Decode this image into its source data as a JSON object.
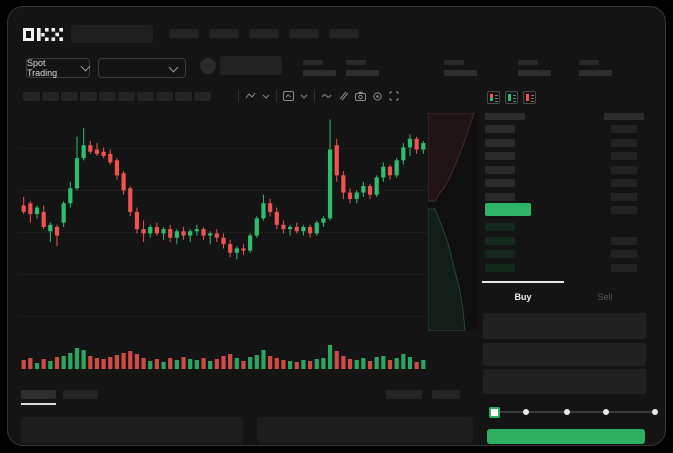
{
  "brand": {
    "name": "OKX"
  },
  "header": {
    "nav_item_count": 5
  },
  "ticker_bar": {
    "market_selector": {
      "label": "Spot Trading"
    },
    "pair_dropdown": {
      "selected": ""
    },
    "stat_placeholder_count": 5
  },
  "chart_toolbar": {
    "interval_placeholder_count": 10,
    "icons": [
      "chart-style-icon",
      "chevron-down-icon",
      "indicators-icon",
      "chevron-down-icon",
      "line-tool-icon",
      "compare-icon",
      "camera-icon",
      "settings-gear-icon",
      "fullscreen-icon"
    ]
  },
  "chart_data": {
    "type": "candlestick",
    "title": "",
    "xlabel": "",
    "ylabel": "",
    "price_scale": {
      "min": 0,
      "max": 100
    },
    "gridlines": {
      "horizontal_count": 5,
      "visible": true
    },
    "candles": [
      [
        57,
        61,
        53,
        54
      ],
      [
        58,
        59,
        49,
        53
      ],
      [
        53,
        57,
        51,
        56
      ],
      [
        54,
        57,
        46,
        47
      ],
      [
        45,
        49,
        40,
        48
      ],
      [
        47,
        48,
        38,
        43
      ],
      [
        49,
        59,
        47,
        58
      ],
      [
        58,
        68,
        56,
        65
      ],
      [
        65,
        89,
        64,
        79
      ],
      [
        79,
        93,
        78,
        85
      ],
      [
        85,
        87,
        81,
        82
      ],
      [
        83,
        86,
        80,
        81
      ],
      [
        82,
        84,
        79,
        80
      ],
      [
        81,
        83,
        76,
        77
      ],
      [
        78,
        79,
        69,
        71
      ],
      [
        72,
        73,
        62,
        64
      ],
      [
        65,
        66,
        52,
        54
      ],
      [
        54,
        56,
        44,
        46
      ],
      [
        46,
        50,
        40,
        44
      ],
      [
        44,
        48,
        42,
        47
      ],
      [
        47,
        49,
        43,
        44
      ],
      [
        44,
        47,
        41,
        46
      ],
      [
        46,
        48,
        40,
        42
      ],
      [
        42,
        46,
        39,
        45
      ],
      [
        45,
        47,
        41,
        43
      ],
      [
        43,
        46,
        40,
        45
      ],
      [
        45,
        48,
        43,
        46
      ],
      [
        46,
        47,
        41,
        43
      ],
      [
        43,
        45,
        39,
        44
      ],
      [
        44,
        46,
        40,
        42
      ],
      [
        42,
        44,
        37,
        39
      ],
      [
        39,
        41,
        33,
        35
      ],
      [
        35,
        38,
        32,
        37
      ],
      [
        37,
        39,
        34,
        36
      ],
      [
        36,
        44,
        35,
        43
      ],
      [
        43,
        52,
        42,
        51
      ],
      [
        51,
        62,
        50,
        58
      ],
      [
        58,
        60,
        52,
        54
      ],
      [
        54,
        56,
        46,
        48
      ],
      [
        48,
        50,
        44,
        46
      ],
      [
        46,
        48,
        43,
        47
      ],
      [
        47,
        49,
        44,
        45
      ],
      [
        45,
        48,
        43,
        47
      ],
      [
        47,
        48,
        42,
        44
      ],
      [
        44,
        50,
        43,
        49
      ],
      [
        49,
        52,
        47,
        51
      ],
      [
        51,
        97,
        50,
        83
      ],
      [
        85,
        88,
        68,
        71
      ],
      [
        71,
        73,
        60,
        63
      ],
      [
        63,
        65,
        58,
        60
      ],
      [
        60,
        64,
        58,
        63
      ],
      [
        63,
        68,
        61,
        66
      ],
      [
        66,
        67,
        60,
        62
      ],
      [
        62,
        71,
        61,
        70
      ],
      [
        70,
        77,
        68,
        75
      ],
      [
        75,
        76,
        69,
        71
      ],
      [
        71,
        79,
        70,
        78
      ],
      [
        78,
        86,
        76,
        84
      ],
      [
        84,
        90,
        80,
        88
      ],
      [
        88,
        89,
        81,
        83
      ],
      [
        83,
        87,
        81,
        86
      ]
    ],
    "volume": [
      9,
      11,
      6,
      10,
      8,
      12,
      13,
      16,
      21,
      19,
      13,
      11,
      10,
      12,
      14,
      16,
      18,
      15,
      11,
      8,
      10,
      7,
      11,
      9,
      12,
      10,
      9,
      11,
      8,
      10,
      13,
      15,
      11,
      8,
      12,
      14,
      19,
      13,
      11,
      9,
      8,
      7,
      9,
      8,
      10,
      11,
      24,
      18,
      13,
      10,
      9,
      11,
      8,
      12,
      13,
      9,
      11,
      15,
      12,
      7,
      9
    ],
    "depth": {
      "asks_points": [
        [
          46,
          0
        ],
        [
          42,
          12
        ],
        [
          38,
          24
        ],
        [
          33,
          38
        ],
        [
          28,
          50
        ],
        [
          23,
          62
        ],
        [
          18,
          72
        ],
        [
          12,
          80
        ],
        [
          7,
          88
        ]
      ],
      "bids_points": [
        [
          7,
          96
        ],
        [
          11,
          106
        ],
        [
          15,
          116
        ],
        [
          20,
          130
        ],
        [
          24,
          146
        ],
        [
          28,
          162
        ],
        [
          32,
          178
        ],
        [
          35,
          196
        ],
        [
          37,
          218
        ]
      ]
    }
  },
  "order_book": {
    "view_modes": [
      "book-all-icon",
      "book-bids-icon",
      "book-asks-icon"
    ],
    "has_header_row": true,
    "ask_row_count": 6,
    "bid_row_count": 4,
    "bid_rows_with_amount": 3,
    "ask_rows_with_amount": 6,
    "price_row_has_amount": true
  },
  "trade_panel": {
    "tabs": [
      {
        "label": "Buy",
        "active": true
      },
      {
        "label": "Sell",
        "active": false
      }
    ],
    "field_placeholder_count": 3,
    "slider": {
      "stop_count": 5,
      "active_stop": 0
    },
    "submit_button": {
      "label": ""
    }
  },
  "bottom_bar": {
    "tab_placeholder_count": 2,
    "active_tab_index": 0,
    "right_button_count": 2,
    "panel_count": 2
  },
  "colors": {
    "background": "#000000",
    "surface": "#141414",
    "up_green": "#2FBE70",
    "down_red": "#EF5350",
    "accent_green": "#2EAF62",
    "last_price_bar": "#2EB368",
    "bid_row_green": "#15281C",
    "ask_fill": "rgba(190,70,70,0.10)",
    "bid_fill": "rgba(50,170,105,0.10)",
    "text_primary": "#F0F0F0",
    "text_muted": "#565656"
  }
}
